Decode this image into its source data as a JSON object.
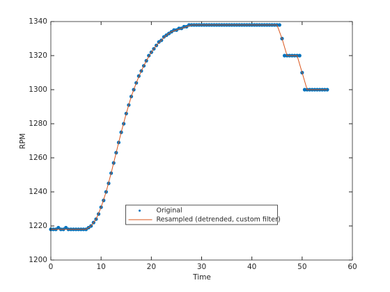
{
  "chart_data": {
    "type": "line",
    "xlabel": "Time",
    "ylabel": "RPM",
    "xlim": [
      0,
      60
    ],
    "xticks": [
      0,
      10,
      20,
      30,
      40,
      50,
      60
    ],
    "ylim": [
      1200,
      1340
    ],
    "yticks": [
      1200,
      1220,
      1240,
      1260,
      1280,
      1300,
      1320,
      1340
    ],
    "legend": "south",
    "series": [
      {
        "name": "Original",
        "color": "#0072bd",
        "style": "points",
        "x": [
          0,
          0.5,
          1,
          1.5,
          2,
          2.5,
          3,
          3.5,
          4,
          4.5,
          5,
          5.5,
          6,
          6.5,
          7,
          7.5,
          8,
          8.5,
          9,
          9.5,
          10,
          10.5,
          11,
          11.5,
          12,
          12.5,
          13,
          13.5,
          14,
          14.5,
          15,
          15.5,
          16,
          16.5,
          17,
          17.5,
          18,
          18.5,
          19,
          19.5,
          20,
          20.5,
          21,
          21.5,
          22,
          22.5,
          23,
          23.5,
          24,
          24.5,
          25,
          25.5,
          26,
          26.5,
          27,
          27.5,
          28,
          28.5,
          29,
          29.5,
          30,
          30.5,
          31,
          31.5,
          32,
          32.5,
          33,
          33.5,
          34,
          34.5,
          35,
          35.5,
          36,
          36.5,
          37,
          37.5,
          38,
          38.5,
          39,
          39.5,
          40,
          40.5,
          41,
          41.5,
          42,
          42.5,
          43,
          43.5,
          44,
          44.5,
          45,
          45.5,
          46,
          46.5,
          47,
          47.5,
          48,
          48.5,
          49,
          49.5,
          50,
          50.5,
          51,
          51.5,
          52,
          52.5,
          53,
          53.5,
          54,
          54.5,
          55
        ],
        "values": [
          1218,
          1218,
          1218,
          1219,
          1218,
          1218,
          1219,
          1218,
          1218,
          1218,
          1218,
          1218,
          1218,
          1218,
          1218,
          1219,
          1220,
          1222,
          1224,
          1227,
          1231,
          1235,
          1240,
          1245,
          1251,
          1257,
          1263,
          1269,
          1275,
          1280,
          1286,
          1291,
          1296,
          1300,
          1304,
          1308,
          1311,
          1314,
          1317,
          1320,
          1322,
          1324,
          1326,
          1328,
          1329,
          1331,
          1332,
          1333,
          1334,
          1335,
          1335,
          1336,
          1336,
          1337,
          1337,
          1338,
          1338,
          1338,
          1338,
          1338,
          1338,
          1338,
          1338,
          1338,
          1338,
          1338,
          1338,
          1338,
          1338,
          1338,
          1338,
          1338,
          1338,
          1338,
          1338,
          1338,
          1338,
          1338,
          1338,
          1338,
          1338,
          1338,
          1338,
          1338,
          1338,
          1338,
          1338,
          1338,
          1338,
          1338,
          1338,
          1338,
          1330,
          1320,
          1320,
          1320,
          1320,
          1320,
          1320,
          1320,
          1310,
          1300,
          1300,
          1300,
          1300,
          1300,
          1300,
          1300,
          1300,
          1300,
          1300
        ]
      },
      {
        "name": "Resampled (detrended, custom filter)",
        "color": "#d95319",
        "style": "line",
        "x": [
          0,
          1,
          2,
          3,
          4,
          5,
          6,
          7,
          8,
          9,
          10,
          11,
          12,
          13,
          14,
          15,
          16,
          17,
          18,
          19,
          20,
          21,
          22,
          23,
          24,
          25,
          26,
          27,
          28,
          29,
          30,
          31,
          32,
          33,
          34,
          35,
          36,
          37,
          38,
          39,
          40,
          41,
          42,
          43,
          44,
          45,
          46,
          47,
          48,
          49,
          50,
          51,
          52,
          53,
          54,
          55
        ],
        "values": [
          1218,
          1218,
          1218,
          1218,
          1218,
          1218,
          1218,
          1218,
          1220,
          1224,
          1231,
          1240,
          1251,
          1263,
          1275,
          1286,
          1296,
          1304,
          1311,
          1317,
          1322,
          1326,
          1329,
          1332,
          1334,
          1335,
          1336,
          1337,
          1338,
          1338,
          1338,
          1338,
          1338,
          1338,
          1338,
          1338,
          1338,
          1338,
          1338,
          1338,
          1338,
          1338,
          1338,
          1338,
          1338,
          1338,
          1330,
          1320,
          1320,
          1320,
          1310,
          1300,
          1300,
          1300,
          1300,
          1300
        ]
      }
    ]
  }
}
